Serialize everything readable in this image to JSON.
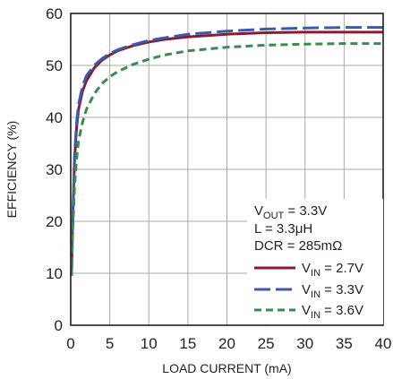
{
  "chart_data": {
    "type": "line",
    "title": "",
    "xlabel": "LOAD CURRENT (mA)",
    "ylabel": "EFFICIENCY (%)",
    "xlim": [
      0,
      40
    ],
    "ylim": [
      0,
      60
    ],
    "x_ticks": [
      "0",
      "5",
      "10",
      "15",
      "20",
      "25",
      "30",
      "35",
      "40"
    ],
    "y_ticks": [
      "0",
      "10",
      "20",
      "30",
      "40",
      "50",
      "60"
    ],
    "grid": true,
    "legend_position": "bottom-right",
    "annotations": [
      {
        "main": "V",
        "sub": "OUT",
        "rest": " = 3.3V"
      },
      {
        "main": "L = 3.3μH",
        "sub": "",
        "rest": ""
      },
      {
        "main": "DCR = 285mΩ",
        "sub": "",
        "rest": ""
      }
    ],
    "series": [
      {
        "label_main": "V",
        "label_sub": "IN",
        "label_rest": " = 2.7V",
        "color": "#8b1a2e",
        "dash": "solid",
        "x": [
          0.1,
          0.25,
          0.5,
          0.75,
          1,
          1.5,
          2,
          3,
          4,
          5,
          6,
          8,
          10,
          12,
          15,
          20,
          25,
          30,
          35,
          40
        ],
        "y": [
          9.5,
          20,
          32,
          38,
          41.5,
          45,
          47,
          49.5,
          51,
          52,
          52.8,
          53.8,
          54.5,
          55,
          55.5,
          56,
          56.3,
          56.4,
          56.4,
          56.4
        ]
      },
      {
        "label_main": "V",
        "label_sub": "IN",
        "label_rest": " = 3.3V",
        "color": "#3a5bab",
        "dash": "long",
        "x": [
          0.1,
          0.25,
          0.5,
          0.75,
          1,
          1.5,
          2,
          3,
          4,
          5,
          6,
          8,
          10,
          12,
          15,
          20,
          25,
          30,
          35,
          40
        ],
        "y": [
          9.5,
          20,
          33,
          39,
          42.5,
          46,
          48,
          50,
          51.3,
          52.3,
          53,
          54,
          54.8,
          55.3,
          56,
          56.6,
          57,
          57.2,
          57.3,
          57.3
        ]
      },
      {
        "label_main": "V",
        "label_sub": "IN",
        "label_rest": " = 3.6V",
        "color": "#3d8a50",
        "dash": "short",
        "x": [
          0.1,
          0.25,
          0.5,
          0.75,
          1,
          1.5,
          2,
          3,
          4,
          5,
          6,
          8,
          10,
          12,
          15,
          20,
          25,
          30,
          35,
          40
        ],
        "y": [
          9.5,
          18,
          27,
          32,
          35.5,
          39,
          41.5,
          44.5,
          46.5,
          47.8,
          48.8,
          50.2,
          51.2,
          52,
          52.8,
          53.5,
          53.9,
          54.1,
          54.2,
          54.2
        ]
      }
    ]
  }
}
